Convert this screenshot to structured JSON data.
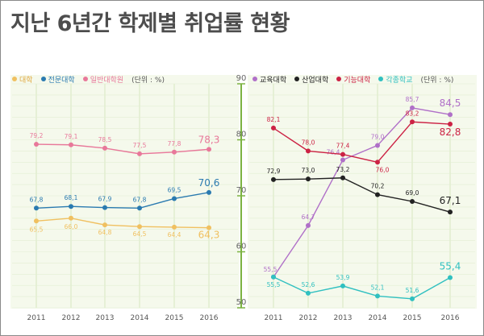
{
  "title": "지난 6년간 학제별 취업률 현황",
  "chart_data": {
    "type": "line",
    "y_axis": {
      "ticks": [
        50,
        60,
        70,
        80,
        90
      ],
      "range": [
        50,
        90
      ]
    },
    "x": [
      "2011",
      "2012",
      "2013",
      "2014",
      "2015",
      "2016"
    ],
    "unit": "(단위 : %)",
    "left": {
      "series": [
        {
          "name": "대학",
          "color": "#f0c060",
          "values": [
            65.5,
            66.0,
            64.8,
            64.5,
            64.4,
            64.3
          ],
          "labels": [
            "65,5",
            "66,0",
            "64,8",
            "64,5",
            "64,4",
            "64,3"
          ]
        },
        {
          "name": "전문대학",
          "color": "#2a7ab0",
          "values": [
            67.8,
            68.1,
            67.9,
            67.8,
            69.5,
            70.6
          ],
          "labels": [
            "67,8",
            "68,1",
            "67,9",
            "67,8",
            "69,5",
            "70,6"
          ]
        },
        {
          "name": "일반대학원",
          "color": "#e8789a",
          "values": [
            79.2,
            79.1,
            78.5,
            77.5,
            77.8,
            78.3
          ],
          "labels": [
            "79,2",
            "79,1",
            "78,5",
            "77,5",
            "77,8",
            "78,3"
          ]
        }
      ]
    },
    "right": {
      "series": [
        {
          "name": "교육대학",
          "color": "#b070c8",
          "values": [
            55.5,
            64.7,
            76.4,
            79.0,
            85.7,
            84.5
          ],
          "labels": [
            "55,5",
            "64,7",
            "76,4",
            "79,0",
            "85,7",
            "84,5"
          ]
        },
        {
          "name": "산업대학",
          "color": "#222222",
          "values": [
            72.9,
            73.0,
            73.2,
            70.2,
            69.0,
            67.1
          ],
          "labels": [
            "72,9",
            "73,0",
            "73,2",
            "70,2",
            "69,0",
            "67,1"
          ]
        },
        {
          "name": "기능대학",
          "color": "#cc2244",
          "values": [
            82.1,
            78.0,
            77.4,
            76.0,
            83.2,
            82.8
          ],
          "labels": [
            "82,1",
            "78,0",
            "77,4",
            "76,0",
            "83,2",
            "82,8"
          ]
        },
        {
          "name": "각종학교",
          "color": "#30c0c0",
          "values": [
            55.5,
            52.6,
            53.9,
            52.1,
            51.6,
            55.4
          ],
          "labels": [
            "55,5",
            "52,6",
            "53,9",
            "52,1",
            "51,6",
            "55,4"
          ]
        }
      ]
    }
  }
}
